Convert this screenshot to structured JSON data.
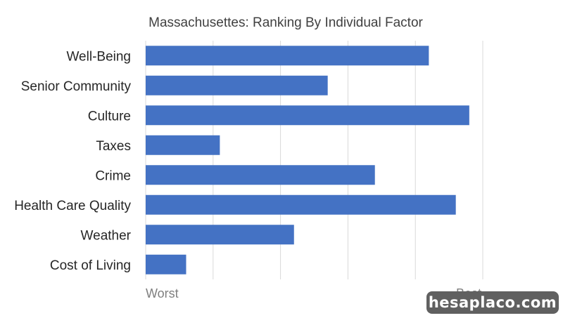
{
  "chart_data": {
    "type": "bar",
    "orientation": "horizontal",
    "title": "Massachusettes: Ranking By Individual Factor",
    "categories": [
      "Well-Being",
      "Senior Community",
      "Culture",
      "Taxes",
      "Crime",
      "Health Care Quality",
      "Weather",
      "Cost of Living"
    ],
    "values": [
      0.84,
      0.54,
      0.96,
      0.22,
      0.68,
      0.92,
      0.44,
      0.12
    ],
    "xlim": [
      0,
      1
    ],
    "x_axis_end_labels": {
      "min": "Worst",
      "max": "Best"
    },
    "vertical_grid": true,
    "bar_color": "#4472c4",
    "grid_color": "#d9d9d9"
  },
  "watermark": {
    "text": "hesaplaco.com"
  }
}
